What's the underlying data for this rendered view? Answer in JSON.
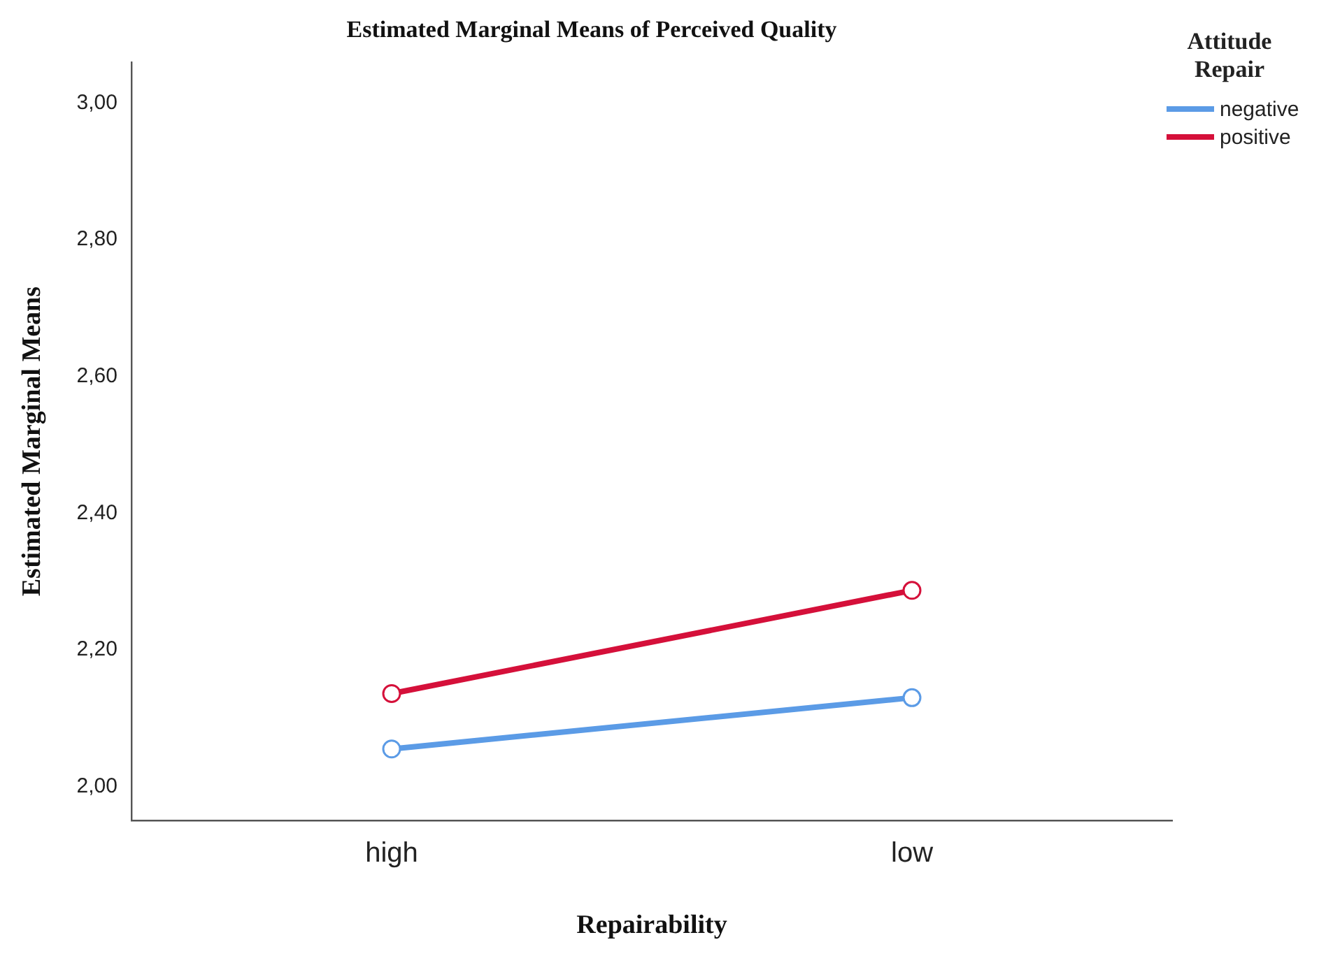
{
  "chart_data": {
    "type": "line",
    "title": "Estimated Marginal Means of Perceived Quality",
    "xlabel": "Repairability",
    "ylabel": "Estimated Marginal Means",
    "legend_title": "Attitude Repair",
    "categories": [
      "high",
      "low"
    ],
    "series": [
      {
        "name": "negative",
        "color": "#5b9be6",
        "values": [
          2.055,
          2.13
        ]
      },
      {
        "name": "positive",
        "color": "#d5103a",
        "values": [
          2.136,
          2.287
        ]
      }
    ],
    "ylim": [
      1.95,
      3.06
    ],
    "yticks": [
      {
        "value": 2,
        "label": "2,00"
      },
      {
        "value": 2.2,
        "label": "2,20"
      },
      {
        "value": 2.4,
        "label": "2,40"
      },
      {
        "value": 2.6,
        "label": "2,60"
      },
      {
        "value": 2.8,
        "label": "2,80"
      },
      {
        "value": 3,
        "label": "3,00"
      }
    ],
    "grid": false,
    "legend": "top right",
    "marker": "circle",
    "line_style": "solid"
  }
}
